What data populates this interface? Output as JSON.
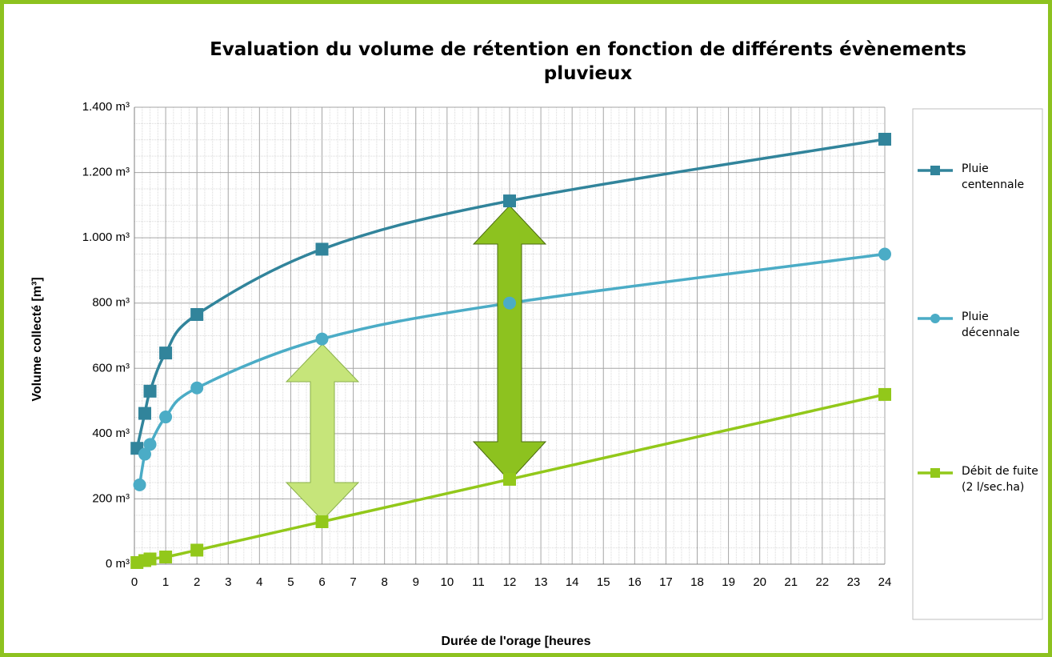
{
  "chart_data": {
    "type": "line",
    "title": "Evaluation du volume de rétention en fonction de différents évènements pluvieux",
    "x_label": "Durée de l'orage [heures",
    "y_label": "Volume collecté [m³]",
    "series": [
      {
        "name": "Pluie centennale",
        "color": "#31849b",
        "marker": "square",
        "x": [
          0.083,
          0.333,
          0.5,
          1,
          2,
          6,
          12,
          24
        ],
        "values": [
          355,
          462,
          530,
          647,
          765,
          965,
          1113,
          1302
        ]
      },
      {
        "name": "Pluie décennale",
        "color": "#4bacc6",
        "marker": "circle",
        "x": [
          0.167,
          0.333,
          0.5,
          1,
          2,
          6,
          12,
          24
        ],
        "values": [
          243,
          337,
          367,
          451,
          540,
          690,
          800,
          950
        ]
      },
      {
        "name": "Débit de fuite (2 l/sec.ha)",
        "color": "#92c81a",
        "marker": "square",
        "x": [
          0.083,
          0.333,
          0.5,
          1,
          2,
          6,
          12,
          24
        ],
        "values": [
          5,
          11,
          16,
          22,
          43,
          130,
          260,
          520
        ]
      }
    ],
    "xlim": [
      0,
      24
    ],
    "xticks": [
      0,
      1,
      2,
      3,
      4,
      5,
      6,
      7,
      8,
      9,
      10,
      11,
      12,
      13,
      14,
      15,
      16,
      17,
      18,
      19,
      20,
      21,
      22,
      23,
      24
    ],
    "ylim": [
      0,
      1400
    ],
    "yticks": [
      {
        "value": 0,
        "label": "0 m³"
      },
      {
        "value": 200,
        "label": "200 m³"
      },
      {
        "value": 400,
        "label": "400 m³"
      },
      {
        "value": 600,
        "label": "600 m³"
      },
      {
        "value": 800,
        "label": "800 m³"
      },
      {
        "value": 1000,
        "label": "1.000 m³"
      },
      {
        "value": 1200,
        "label": "1.200 m³"
      },
      {
        "value": 1400,
        "label": "1.400 m³"
      }
    ],
    "grid": true,
    "legend": "right"
  }
}
